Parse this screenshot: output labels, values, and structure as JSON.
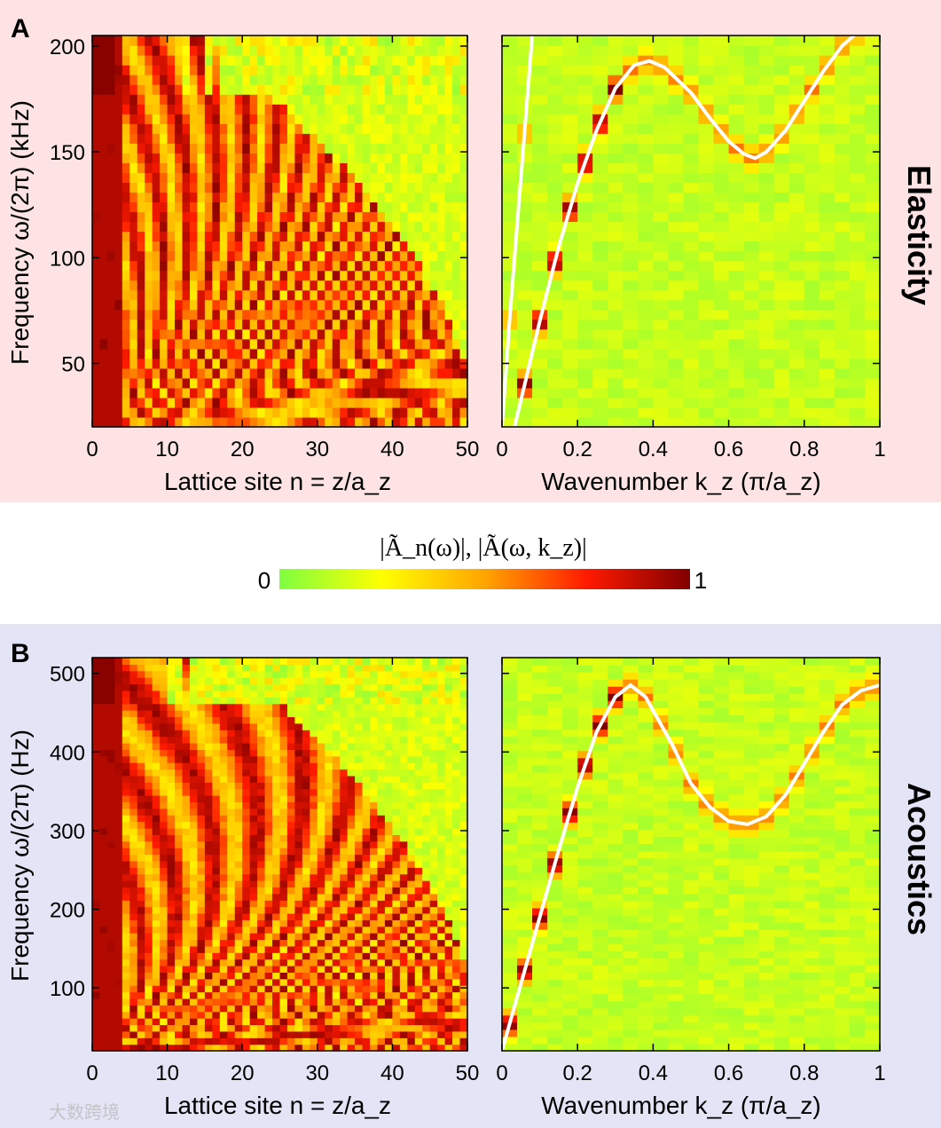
{
  "colors": {
    "panel_a_background": "#fde3e3",
    "panel_b_background": "#e4e4f7",
    "curve": "#ffffff",
    "colormap": [
      "#7fff00",
      "#ffff00",
      "#ffa500",
      "#ff0000",
      "#8b0000"
    ]
  },
  "colorbar": {
    "label": "|Ã_n(ω)|, |Ã(ω, k_z)|",
    "min_label": "0",
    "max_label": "1"
  },
  "watermark": "大数跨境",
  "chart_data": [
    {
      "panel": "A",
      "row_title": "Elasticity",
      "type": "heatmap",
      "title": "",
      "xlabel": "Lattice site n = z/a_z",
      "ylabel": "Frequency ω/(2π) (kHz)",
      "xlim": [
        0,
        50
      ],
      "ylim": [
        20,
        205
      ],
      "xticks": [
        0,
        10,
        20,
        30,
        40,
        50
      ],
      "yticks": [
        50,
        100,
        150,
        200
      ],
      "grid": false,
      "colormap_range": [
        0,
        1
      ],
      "pattern": "fringes_n_space",
      "fringe_period_scale": 0.1,
      "fringe_cutoff_n": [
        20,
        205,
        38,
        140,
        52
      ],
      "high_freq_amplitude_limit": 175
    },
    {
      "panel": "A",
      "row_title": "Elasticity",
      "type": "heatmap",
      "title": "",
      "xlabel": "Wavenumber k_z (π/a_z)",
      "ylabel": "",
      "xlim": [
        0,
        1
      ],
      "ylim": [
        20,
        205
      ],
      "xticks": [
        0,
        0.2,
        0.4,
        0.6,
        0.8,
        1
      ],
      "yticks": [
        50,
        100,
        150,
        200
      ],
      "grid": false,
      "colormap_range": [
        0,
        1
      ],
      "pattern": "dispersion_k_space",
      "dispersion_curve": {
        "k": [
          0.02,
          0.06,
          0.1,
          0.15,
          0.2,
          0.25,
          0.3,
          0.35,
          0.39,
          0.43,
          0.5,
          0.55,
          0.6,
          0.64,
          0.67,
          0.7,
          0.75,
          0.8,
          0.85,
          0.9,
          0.95
        ],
        "omega": [
          10,
          40,
          70,
          105,
          135,
          160,
          180,
          191,
          193,
          190,
          178,
          166,
          155,
          149,
          147,
          150,
          160,
          174,
          188,
          200,
          208
        ]
      },
      "second_branch": {
        "k": [
          0.0,
          0.02,
          0.04,
          0.06,
          0.08
        ],
        "omega": [
          20,
          70,
          115,
          160,
          205
        ]
      },
      "curve_color": "#ffffff"
    },
    {
      "panel": "B",
      "row_title": "Acoustics",
      "type": "heatmap",
      "title": "",
      "xlabel": "Lattice site n = z/a_z",
      "ylabel": "Frequency ω/(2π) (Hz)",
      "xlim": [
        0,
        50
      ],
      "ylim": [
        20,
        520
      ],
      "xticks": [
        0,
        10,
        20,
        30,
        40,
        50
      ],
      "yticks": [
        100,
        200,
        300,
        400,
        500
      ],
      "grid": false,
      "colormap_range": [
        0,
        1
      ],
      "pattern": "fringes_n_space",
      "fringe_period_scale": 0.1,
      "fringe_cutoff_n": [
        20,
        520,
        45,
        420,
        52
      ],
      "high_freq_amplitude_limit": 460
    },
    {
      "panel": "B",
      "row_title": "Acoustics",
      "type": "heatmap",
      "title": "",
      "xlabel": "Wavenumber k_z (π/a_z)",
      "ylabel": "",
      "xlim": [
        0,
        1
      ],
      "ylim": [
        20,
        520
      ],
      "xticks": [
        0,
        0.2,
        0.4,
        0.6,
        0.8,
        1
      ],
      "yticks": [
        100,
        200,
        300,
        400,
        500
      ],
      "grid": false,
      "colormap_range": [
        0,
        1
      ],
      "pattern": "dispersion_k_space",
      "dispersion_curve": {
        "k": [
          0.0,
          0.05,
          0.1,
          0.15,
          0.2,
          0.25,
          0.3,
          0.34,
          0.38,
          0.45,
          0.5,
          0.55,
          0.6,
          0.65,
          0.7,
          0.75,
          0.8,
          0.85,
          0.9,
          0.95,
          1.0
        ],
        "omega": [
          20,
          105,
          190,
          275,
          355,
          425,
          470,
          485,
          470,
          410,
          360,
          330,
          312,
          308,
          318,
          345,
          385,
          425,
          460,
          478,
          485
        ]
      },
      "curve_color": "#ffffff"
    }
  ]
}
